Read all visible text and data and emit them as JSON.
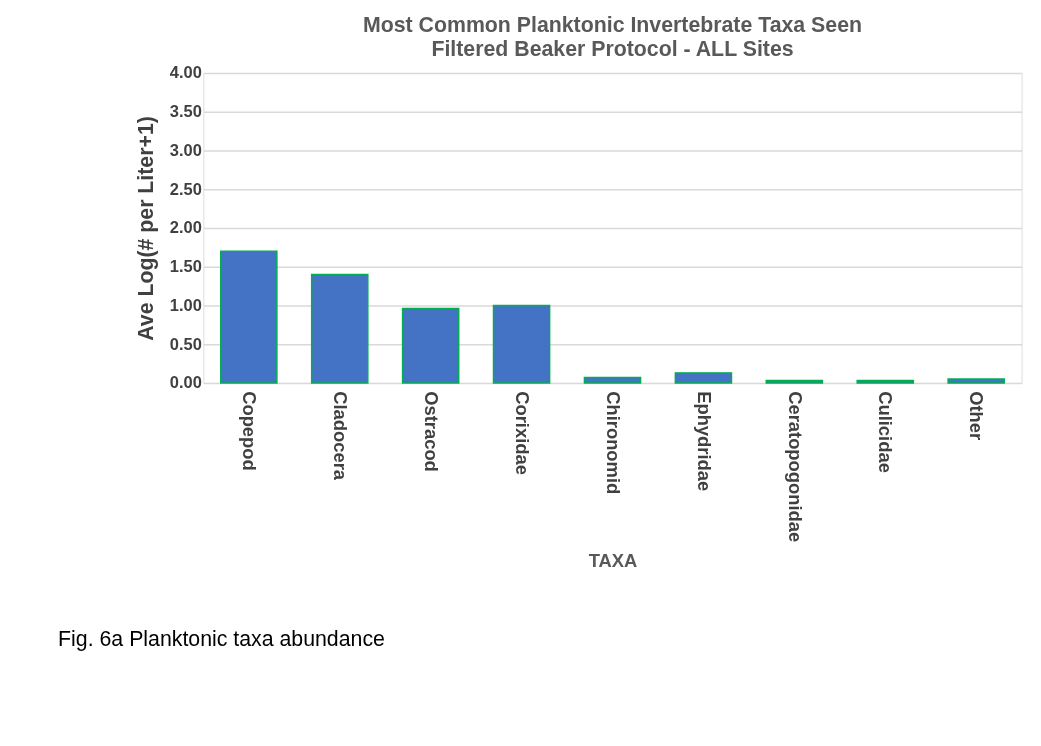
{
  "chart_data": {
    "type": "bar",
    "title": [
      "Most Common Planktonic Invertebrate Taxa Seen",
      "Filtered Beaker Protocol - ALL Sites"
    ],
    "xlabel": "TAXA",
    "ylabel": "Ave Log(# per Liter+1)",
    "categories": [
      "Copepod",
      "Cladocera",
      "Ostracod",
      "Corixidae",
      "Chironomid",
      "Ephydridae",
      "Ceratopogonidae",
      "Culicidae",
      "Other"
    ],
    "values": [
      1.7,
      1.4,
      0.96,
      1.0,
      0.07,
      0.13,
      0.03,
      0.03,
      0.05
    ],
    "color": "#4472c4",
    "ylim": [
      0,
      4
    ],
    "yticks": [
      {
        "value": 0,
        "label": "0.00"
      },
      {
        "value": 0.5,
        "label": "0.50"
      },
      {
        "value": 1,
        "label": "1.00"
      },
      {
        "value": 1.5,
        "label": "1.50"
      },
      {
        "value": 2,
        "label": "2.00"
      },
      {
        "value": 2.5,
        "label": "2.50"
      },
      {
        "value": 3,
        "label": "3.00"
      },
      {
        "value": 3.5,
        "label": "3.50"
      },
      {
        "value": 4,
        "label": "4.00"
      }
    ],
    "grid": "y",
    "annotations": [
      "Fig. 6a Planktonic taxa abundance"
    ]
  }
}
